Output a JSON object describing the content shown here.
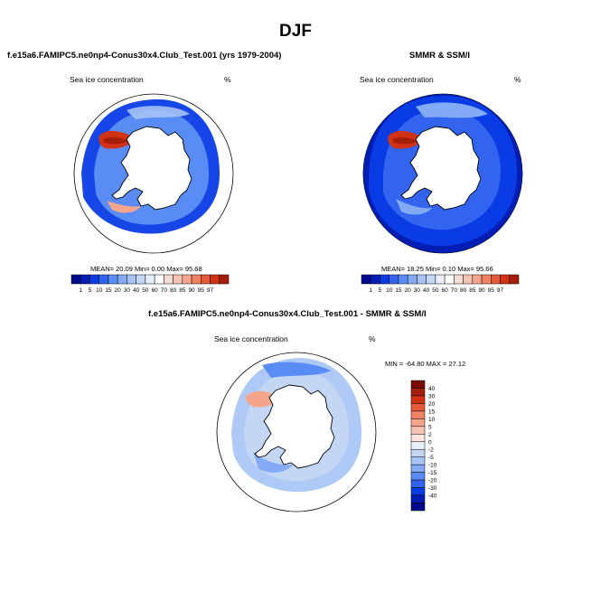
{
  "title": "DJF",
  "colors": {
    "palette_a": [
      "#000a8c",
      "#001db4",
      "#0a3ce6",
      "#3264f0",
      "#5a8cf5",
      "#82aaf5",
      "#a5c3f5",
      "#c3d7f5",
      "#e6eef8",
      "#ffffff",
      "#f5dcd7",
      "#f5c3b4",
      "#f5a58c",
      "#f08264",
      "#e65a3c",
      "#d23214",
      "#a51e0a"
    ],
    "palette_diff": [
      "#000a8c",
      "#001db4",
      "#0a3ce6",
      "#3264f0",
      "#5a8cf5",
      "#82aaf5",
      "#a5c3f5",
      "#c3d7f5",
      "#e6eef8",
      "#fde6e1",
      "#f5c3b4",
      "#f5a58c",
      "#f08264",
      "#e65a3c",
      "#d23214",
      "#a51e0a",
      "#780a00"
    ]
  },
  "panels": [
    {
      "title": "f.e15a6.FAMIPC5.ne0np4-Conus30x4.Club_Test.001 (yrs 1979-2004)",
      "field": "Sea ice concentration",
      "units": "%",
      "stats": "MEAN=  20.09  Min=   0.00  Max=  95.68",
      "colorbar_labels": [
        "1",
        "5",
        "10",
        "15",
        "20",
        "30",
        "40",
        "50",
        "60",
        "70",
        "80",
        "85",
        "90",
        "95",
        "97"
      ]
    },
    {
      "title": "SMMR & SSM/I",
      "field": "Sea ice concentration",
      "units": "%",
      "stats": "MEAN=  18.25  Min=   0.10  Max=  95.66",
      "colorbar_labels": [
        "1",
        "5",
        "10",
        "15",
        "20",
        "30",
        "40",
        "50",
        "60",
        "70",
        "80",
        "85",
        "90",
        "95",
        "97"
      ]
    },
    {
      "title": "f.e15a6.FAMIPC5.ne0np4-Conus30x4.Club_Test.001 - SMMR & SSM/I",
      "field": "Sea ice concentration",
      "units": "%",
      "stats": "MIN = -64.80 MAX =  27.12",
      "colorbar_labels": [
        "40",
        "30",
        "20",
        "15",
        "10",
        "5",
        "2",
        "0",
        "-2",
        "-5",
        "-10",
        "-15",
        "-20",
        "-30",
        "-40"
      ]
    }
  ]
}
